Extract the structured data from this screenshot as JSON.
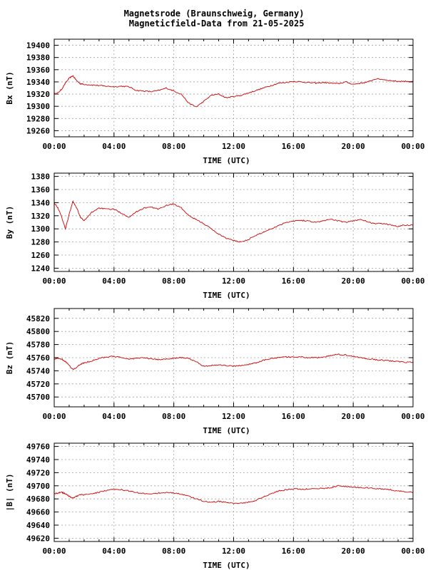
{
  "title_line1": "Magnetsrode (Braunschweig, Germany)",
  "title_line2": "Magneticfield-Data from 21-05-2025",
  "colors": {
    "trace": "#d00000",
    "grid": "#a0a0a0",
    "axis": "#000000"
  },
  "chart_data": [
    {
      "type": "line",
      "ylabel": "Bx (nT)",
      "xlabel": "TIME (UTC)",
      "x_ticks": [
        "00:00",
        "04:00",
        "08:00",
        "12:00",
        "16:00",
        "20:00",
        "00:00"
      ],
      "xlim": [
        0,
        24
      ],
      "ylim": [
        19250,
        19410
      ],
      "y_ticks": [
        19260,
        19280,
        19300,
        19320,
        19340,
        19360,
        19380,
        19400
      ],
      "grid": true,
      "series": [
        {
          "x": [
            0,
            0.25,
            0.5,
            0.75,
            1,
            1.25,
            1.5,
            1.75,
            2,
            2.5,
            3,
            3.5,
            4,
            4.5,
            5,
            5.5,
            6,
            6.5,
            7,
            7.5,
            8,
            8.5,
            9,
            9.5,
            10,
            10.5,
            11,
            11.5,
            12,
            12.5,
            13,
            13.5,
            14,
            14.5,
            15,
            15.5,
            16,
            16.5,
            17,
            17.5,
            18,
            18.5,
            19,
            19.5,
            20,
            20.5,
            21,
            21.5,
            22,
            22.5,
            23,
            23.5,
            24
          ],
          "y": [
            19320,
            19322,
            19328,
            19338,
            19346,
            19350,
            19342,
            19337,
            19336,
            19335,
            19334,
            19333,
            19332,
            19333,
            19332,
            19326,
            19325,
            19324,
            19326,
            19330,
            19325,
            19320,
            19305,
            19299,
            19308,
            19318,
            19320,
            19314,
            19316,
            19318,
            19322,
            19326,
            19330,
            19334,
            19338,
            19339,
            19341,
            19340,
            19339,
            19338,
            19339,
            19338,
            19337,
            19340,
            19336,
            19338,
            19340,
            19345,
            19344,
            19342,
            19341,
            19341,
            19341
          ]
        }
      ]
    },
    {
      "type": "line",
      "ylabel": "By (nT)",
      "xlabel": "TIME (UTC)",
      "x_ticks": [
        "00:00",
        "04:00",
        "08:00",
        "12:00",
        "16:00",
        "20:00",
        "00:00"
      ],
      "xlim": [
        0,
        24
      ],
      "ylim": [
        1235,
        1385
      ],
      "y_ticks": [
        1240,
        1260,
        1280,
        1300,
        1320,
        1340,
        1360,
        1380
      ],
      "grid": true,
      "series": [
        {
          "x": [
            0,
            0.25,
            0.5,
            0.75,
            1,
            1.25,
            1.5,
            1.75,
            2,
            2.5,
            3,
            3.5,
            4,
            4.5,
            5,
            5.5,
            6,
            6.5,
            7,
            7.5,
            8,
            8.5,
            9,
            9.5,
            10,
            10.5,
            11,
            11.5,
            12,
            12.5,
            13,
            13.5,
            14,
            14.5,
            15,
            15.5,
            16,
            16.5,
            17,
            17.5,
            18,
            18.5,
            19,
            19.5,
            20,
            20.5,
            21,
            21.5,
            22,
            22.5,
            23,
            23.5,
            24
          ],
          "y": [
            1340,
            1332,
            1318,
            1300,
            1322,
            1342,
            1332,
            1318,
            1312,
            1325,
            1332,
            1330,
            1330,
            1324,
            1318,
            1326,
            1332,
            1333,
            1330,
            1336,
            1338,
            1332,
            1320,
            1314,
            1308,
            1300,
            1292,
            1286,
            1282,
            1280,
            1284,
            1290,
            1295,
            1300,
            1305,
            1310,
            1312,
            1313,
            1312,
            1310,
            1312,
            1315,
            1312,
            1310,
            1312,
            1315,
            1310,
            1308,
            1308,
            1306,
            1304,
            1306,
            1306
          ]
        }
      ]
    },
    {
      "type": "line",
      "ylabel": "Bz (nT)",
      "xlabel": "TIME (UTC)",
      "x_ticks": [
        "00:00",
        "04:00",
        "08:00",
        "12:00",
        "16:00",
        "20:00",
        "00:00"
      ],
      "xlim": [
        0,
        24
      ],
      "ylim": [
        45685,
        45835
      ],
      "y_ticks": [
        45700,
        45720,
        45740,
        45760,
        45780,
        45800,
        45820
      ],
      "grid": true,
      "series": [
        {
          "x": [
            0,
            0.25,
            0.5,
            0.75,
            1,
            1.25,
            1.5,
            1.75,
            2,
            2.5,
            3,
            3.5,
            4,
            4.5,
            5,
            5.5,
            6,
            6.5,
            7,
            7.5,
            8,
            8.5,
            9,
            9.5,
            10,
            10.5,
            11,
            11.5,
            12,
            12.5,
            13,
            13.5,
            14,
            14.5,
            15,
            15.5,
            16,
            16.5,
            17,
            17.5,
            18,
            18.5,
            19,
            19.5,
            20,
            20.5,
            21,
            21.5,
            22,
            22.5,
            23,
            23.5,
            24
          ],
          "y": [
            45758,
            45759,
            45758,
            45754,
            45748,
            45742,
            45745,
            45750,
            45752,
            45755,
            45759,
            45761,
            45762,
            45760,
            45758,
            45759,
            45760,
            45758,
            45757,
            45758,
            45759,
            45760,
            45759,
            45754,
            45747,
            45748,
            45749,
            45748,
            45747,
            45748,
            45750,
            45752,
            45756,
            45759,
            45760,
            45761,
            45761,
            45761,
            45760,
            45760,
            45761,
            45763,
            45765,
            45764,
            45762,
            45760,
            45758,
            45757,
            45756,
            45755,
            45754,
            45753,
            45753
          ]
        }
      ]
    },
    {
      "type": "line",
      "ylabel": "|B| (nT)",
      "xlabel": "TIME (UTC)",
      "x_ticks": [
        "00:00",
        "04:00",
        "08:00",
        "12:00",
        "16:00",
        "20:00",
        "00:00"
      ],
      "xlim": [
        0,
        24
      ],
      "ylim": [
        49615,
        49765
      ],
      "y_ticks": [
        49620,
        49640,
        49660,
        49680,
        49700,
        49720,
        49740,
        49760
      ],
      "grid": true,
      "series": [
        {
          "x": [
            0,
            0.25,
            0.5,
            0.75,
            1,
            1.25,
            1.5,
            1.75,
            2,
            2.5,
            3,
            3.5,
            4,
            4.5,
            5,
            5.5,
            6,
            6.5,
            7,
            7.5,
            8,
            8.5,
            9,
            9.5,
            10,
            10.5,
            11,
            11.5,
            12,
            12.5,
            13,
            13.5,
            14,
            14.5,
            15,
            15.5,
            16,
            16.5,
            17,
            17.5,
            18,
            18.5,
            19,
            19.5,
            20,
            20.5,
            21,
            21.5,
            22,
            22.5,
            23,
            23.5,
            24
          ],
          "y": [
            49688,
            49689,
            49690,
            49688,
            49684,
            49681,
            49684,
            49687,
            49686,
            49688,
            49690,
            49693,
            49695,
            49694,
            49692,
            49690,
            49688,
            49688,
            49689,
            49690,
            49689,
            49687,
            49684,
            49680,
            49676,
            49675,
            49676,
            49675,
            49673,
            49673,
            49675,
            49678,
            49683,
            49688,
            49692,
            49694,
            49695,
            49695,
            49695,
            49696,
            49696,
            49697,
            49700,
            49699,
            49698,
            49697,
            49697,
            49696,
            49695,
            49694,
            49692,
            49691,
            49690
          ]
        }
      ]
    }
  ]
}
